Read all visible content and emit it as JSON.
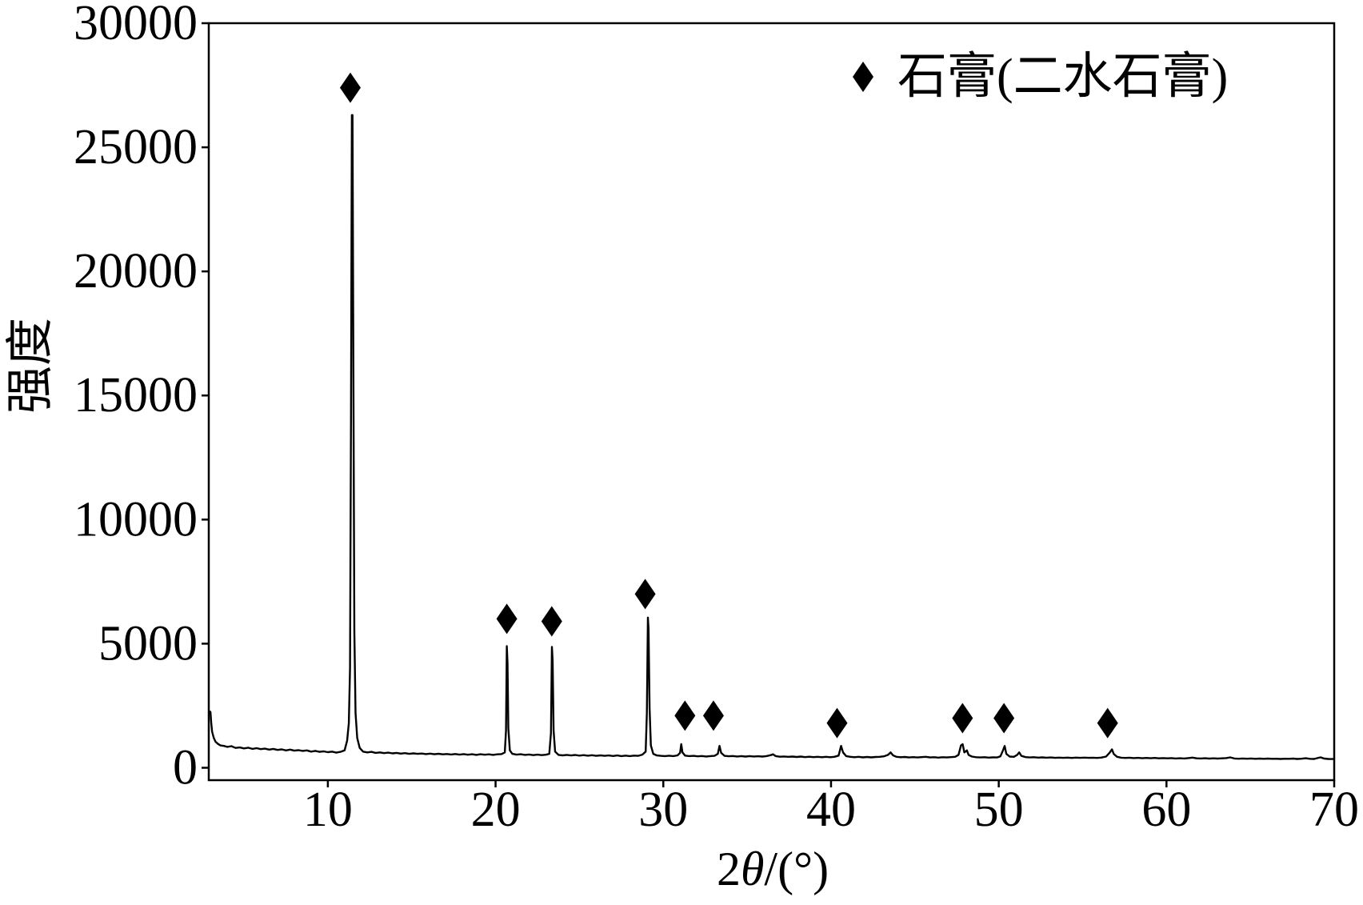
{
  "chart_data": {
    "type": "line",
    "xlabel": "2θ/(°)",
    "ylabel": "强度",
    "xlim": [
      2.9,
      70
    ],
    "ylim": [
      -500,
      30000
    ],
    "xticks": [
      10,
      20,
      30,
      40,
      50,
      60,
      70
    ],
    "yticks": [
      0,
      5000,
      10000,
      15000,
      20000,
      25000,
      30000
    ],
    "grid": false,
    "color": "#000000",
    "series": [
      {
        "points": [
          [
            2.9,
            2300
          ],
          [
            3,
            2250
          ],
          [
            3.05,
            1800
          ],
          [
            3.1,
            1450
          ],
          [
            3.2,
            1200
          ],
          [
            3.3,
            1050
          ],
          [
            3.45,
            960
          ],
          [
            3.6,
            900
          ],
          [
            3.8,
            880
          ],
          [
            4,
            840
          ],
          [
            4.25,
            870
          ],
          [
            4.5,
            800
          ],
          [
            4.75,
            820
          ],
          [
            5,
            780
          ],
          [
            5.25,
            810
          ],
          [
            5.5,
            760
          ],
          [
            5.75,
            790
          ],
          [
            6,
            750
          ],
          [
            6.25,
            770
          ],
          [
            6.5,
            730
          ],
          [
            6.75,
            760
          ],
          [
            7,
            720
          ],
          [
            7.25,
            740
          ],
          [
            7.5,
            700
          ],
          [
            7.75,
            730
          ],
          [
            8,
            690
          ],
          [
            8.25,
            710
          ],
          [
            8.5,
            680
          ],
          [
            8.75,
            700
          ],
          [
            9,
            650
          ],
          [
            9.25,
            680
          ],
          [
            9.5,
            640
          ],
          [
            9.75,
            660
          ],
          [
            10,
            630
          ],
          [
            10.25,
            650
          ],
          [
            10.5,
            610
          ],
          [
            10.75,
            640
          ],
          [
            11,
            700
          ],
          [
            11.15,
            1100
          ],
          [
            11.25,
            1800
          ],
          [
            11.32,
            4000
          ],
          [
            11.38,
            14000
          ],
          [
            11.43,
            26300
          ],
          [
            11.47,
            26300
          ],
          [
            11.52,
            16000
          ],
          [
            11.58,
            5500
          ],
          [
            11.65,
            2200
          ],
          [
            11.75,
            1200
          ],
          [
            11.9,
            800
          ],
          [
            12.1,
            650
          ],
          [
            12.35,
            620
          ],
          [
            12.6,
            640
          ],
          [
            12.85,
            600
          ],
          [
            13.1,
            620
          ],
          [
            13.35,
            590
          ],
          [
            13.6,
            610
          ],
          [
            13.85,
            580
          ],
          [
            14.1,
            600
          ],
          [
            14.35,
            570
          ],
          [
            14.6,
            590
          ],
          [
            14.85,
            560
          ],
          [
            15.1,
            580
          ],
          [
            15.35,
            560
          ],
          [
            15.6,
            575
          ],
          [
            15.85,
            550
          ],
          [
            16.1,
            570
          ],
          [
            16.35,
            545
          ],
          [
            16.6,
            565
          ],
          [
            16.85,
            540
          ],
          [
            17.1,
            555
          ],
          [
            17.35,
            535
          ],
          [
            17.6,
            555
          ],
          [
            17.85,
            530
          ],
          [
            18.1,
            550
          ],
          [
            18.35,
            525
          ],
          [
            18.6,
            545
          ],
          [
            18.85,
            520
          ],
          [
            19.1,
            545
          ],
          [
            19.35,
            525
          ],
          [
            19.6,
            540
          ],
          [
            19.85,
            520
          ],
          [
            20.1,
            540
          ],
          [
            20.35,
            550
          ],
          [
            20.55,
            620
          ],
          [
            20.62,
            1500
          ],
          [
            20.67,
            4900
          ],
          [
            20.71,
            4200
          ],
          [
            20.76,
            1600
          ],
          [
            20.85,
            700
          ],
          [
            21,
            560
          ],
          [
            21.25,
            530
          ],
          [
            21.5,
            545
          ],
          [
            21.75,
            520
          ],
          [
            22,
            535
          ],
          [
            22.25,
            510
          ],
          [
            22.5,
            530
          ],
          [
            22.75,
            510
          ],
          [
            23,
            525
          ],
          [
            23.2,
            560
          ],
          [
            23.3,
            1400
          ],
          [
            23.36,
            4870
          ],
          [
            23.4,
            4300
          ],
          [
            23.46,
            1500
          ],
          [
            23.55,
            650
          ],
          [
            23.75,
            520
          ],
          [
            24,
            500
          ],
          [
            24.25,
            520
          ],
          [
            24.5,
            495
          ],
          [
            24.75,
            515
          ],
          [
            25,
            490
          ],
          [
            25.25,
            510
          ],
          [
            25.5,
            485
          ],
          [
            25.75,
            505
          ],
          [
            26,
            480
          ],
          [
            26.25,
            500
          ],
          [
            26.5,
            480
          ],
          [
            26.75,
            495
          ],
          [
            27,
            475
          ],
          [
            27.25,
            495
          ],
          [
            27.5,
            470
          ],
          [
            27.75,
            490
          ],
          [
            28,
            470
          ],
          [
            28.25,
            490
          ],
          [
            28.5,
            480
          ],
          [
            28.75,
            530
          ],
          [
            28.95,
            650
          ],
          [
            29.02,
            2200
          ],
          [
            29.08,
            6050
          ],
          [
            29.12,
            5600
          ],
          [
            29.18,
            2400
          ],
          [
            29.26,
            900
          ],
          [
            29.4,
            560
          ],
          [
            29.6,
            500
          ],
          [
            29.85,
            480
          ],
          [
            30.1,
            470
          ],
          [
            30.35,
            485
          ],
          [
            30.6,
            470
          ],
          [
            30.85,
            500
          ],
          [
            31,
            600
          ],
          [
            31.07,
            950
          ],
          [
            31.14,
            620
          ],
          [
            31.3,
            490
          ],
          [
            31.55,
            470
          ],
          [
            31.8,
            480
          ],
          [
            32.05,
            460
          ],
          [
            32.3,
            475
          ],
          [
            32.55,
            455
          ],
          [
            32.8,
            470
          ],
          [
            33.05,
            480
          ],
          [
            33.25,
            560
          ],
          [
            33.35,
            880
          ],
          [
            33.45,
            600
          ],
          [
            33.65,
            480
          ],
          [
            33.9,
            465
          ],
          [
            34.15,
            475
          ],
          [
            34.4,
            455
          ],
          [
            34.65,
            470
          ],
          [
            34.9,
            450
          ],
          [
            35.15,
            470
          ],
          [
            35.4,
            455
          ],
          [
            35.65,
            465
          ],
          [
            35.9,
            450
          ],
          [
            36.15,
            470
          ],
          [
            36.4,
            510
          ],
          [
            36.55,
            540
          ],
          [
            36.7,
            470
          ],
          [
            36.95,
            445
          ],
          [
            37.2,
            455
          ],
          [
            37.45,
            440
          ],
          [
            37.7,
            450
          ],
          [
            37.95,
            435
          ],
          [
            38.2,
            450
          ],
          [
            38.45,
            430
          ],
          [
            38.7,
            445
          ],
          [
            38.95,
            430
          ],
          [
            39.2,
            440
          ],
          [
            39.45,
            425
          ],
          [
            39.7,
            440
          ],
          [
            39.95,
            425
          ],
          [
            40.2,
            440
          ],
          [
            40.45,
            490
          ],
          [
            40.6,
            880
          ],
          [
            40.72,
            620
          ],
          [
            40.9,
            470
          ],
          [
            41.15,
            440
          ],
          [
            41.4,
            425
          ],
          [
            41.65,
            440
          ],
          [
            41.9,
            420
          ],
          [
            42.15,
            435
          ],
          [
            42.4,
            420
          ],
          [
            42.65,
            435
          ],
          [
            42.9,
            440
          ],
          [
            43.15,
            460
          ],
          [
            43.4,
            520
          ],
          [
            43.55,
            620
          ],
          [
            43.7,
            500
          ],
          [
            43.9,
            440
          ],
          [
            44.15,
            425
          ],
          [
            44.4,
            435
          ],
          [
            44.65,
            415
          ],
          [
            44.9,
            430
          ],
          [
            45.15,
            415
          ],
          [
            45.4,
            430
          ],
          [
            45.65,
            440
          ],
          [
            45.9,
            415
          ],
          [
            46.15,
            425
          ],
          [
            46.4,
            410
          ],
          [
            46.65,
            425
          ],
          [
            46.9,
            415
          ],
          [
            47.15,
            430
          ],
          [
            47.4,
            440
          ],
          [
            47.6,
            520
          ],
          [
            47.75,
            900
          ],
          [
            47.85,
            950
          ],
          [
            47.95,
            620
          ],
          [
            48.1,
            700
          ],
          [
            48.2,
            520
          ],
          [
            48.4,
            450
          ],
          [
            48.65,
            425
          ],
          [
            48.9,
            415
          ],
          [
            49.15,
            425
          ],
          [
            49.4,
            410
          ],
          [
            49.65,
            420
          ],
          [
            49.9,
            415
          ],
          [
            50.1,
            460
          ],
          [
            50.25,
            700
          ],
          [
            50.35,
            880
          ],
          [
            50.45,
            560
          ],
          [
            50.65,
            450
          ],
          [
            50.9,
            440
          ],
          [
            51.1,
            520
          ],
          [
            51.22,
            620
          ],
          [
            51.35,
            480
          ],
          [
            51.6,
            430
          ],
          [
            51.85,
            415
          ],
          [
            52.1,
            425
          ],
          [
            52.35,
            410
          ],
          [
            52.6,
            420
          ],
          [
            52.85,
            405
          ],
          [
            53.1,
            415
          ],
          [
            53.35,
            400
          ],
          [
            53.6,
            410
          ],
          [
            53.85,
            400
          ],
          [
            54.1,
            410
          ],
          [
            54.35,
            395
          ],
          [
            54.6,
            410
          ],
          [
            54.85,
            400
          ],
          [
            55.1,
            410
          ],
          [
            55.35,
            400
          ],
          [
            55.6,
            405
          ],
          [
            55.85,
            395
          ],
          [
            56.1,
            410
          ],
          [
            56.4,
            450
          ],
          [
            56.6,
            600
          ],
          [
            56.75,
            740
          ],
          [
            56.85,
            560
          ],
          [
            57.05,
            440
          ],
          [
            57.3,
            405
          ],
          [
            57.55,
            395
          ],
          [
            57.8,
            405
          ],
          [
            58.05,
            390
          ],
          [
            58.3,
            400
          ],
          [
            58.55,
            385
          ],
          [
            58.8,
            395
          ],
          [
            59.05,
            385
          ],
          [
            59.3,
            395
          ],
          [
            59.55,
            380
          ],
          [
            59.8,
            390
          ],
          [
            60.05,
            380
          ],
          [
            60.3,
            390
          ],
          [
            60.55,
            375
          ],
          [
            60.8,
            385
          ],
          [
            61.05,
            375
          ],
          [
            61.3,
            390
          ],
          [
            61.55,
            410
          ],
          [
            61.8,
            380
          ],
          [
            62.05,
            375
          ],
          [
            62.3,
            385
          ],
          [
            62.55,
            370
          ],
          [
            62.8,
            380
          ],
          [
            63.05,
            370
          ],
          [
            63.3,
            380
          ],
          [
            63.55,
            390
          ],
          [
            63.8,
            420
          ],
          [
            64.05,
            375
          ],
          [
            64.3,
            365
          ],
          [
            64.55,
            375
          ],
          [
            64.8,
            365
          ],
          [
            65.05,
            375
          ],
          [
            65.3,
            360
          ],
          [
            65.55,
            370
          ],
          [
            65.8,
            360
          ],
          [
            66.05,
            370
          ],
          [
            66.3,
            360
          ],
          [
            66.55,
            365
          ],
          [
            66.8,
            355
          ],
          [
            67.05,
            365
          ],
          [
            67.3,
            360
          ],
          [
            67.55,
            370
          ],
          [
            67.8,
            355
          ],
          [
            68.05,
            365
          ],
          [
            68.3,
            385
          ],
          [
            68.55,
            360
          ],
          [
            68.8,
            355
          ],
          [
            69.05,
            400
          ],
          [
            69.2,
            420
          ],
          [
            69.4,
            370
          ],
          [
            69.65,
            355
          ],
          [
            69.85,
            350
          ],
          [
            70,
            350
          ]
        ]
      }
    ],
    "markers": {
      "name": "石膏(二水石膏)",
      "symbol": "diamond",
      "points": [
        [
          11.34,
          27400
        ],
        [
          20.67,
          6000
        ],
        [
          23.35,
          5900
        ],
        [
          28.92,
          7000
        ],
        [
          31.29,
          2100
        ],
        [
          32.99,
          2100
        ],
        [
          40.36,
          1800
        ],
        [
          47.84,
          2000
        ],
        [
          50.31,
          2000
        ],
        [
          56.49,
          1800
        ]
      ]
    },
    "legend": {
      "position": "top-right"
    }
  }
}
